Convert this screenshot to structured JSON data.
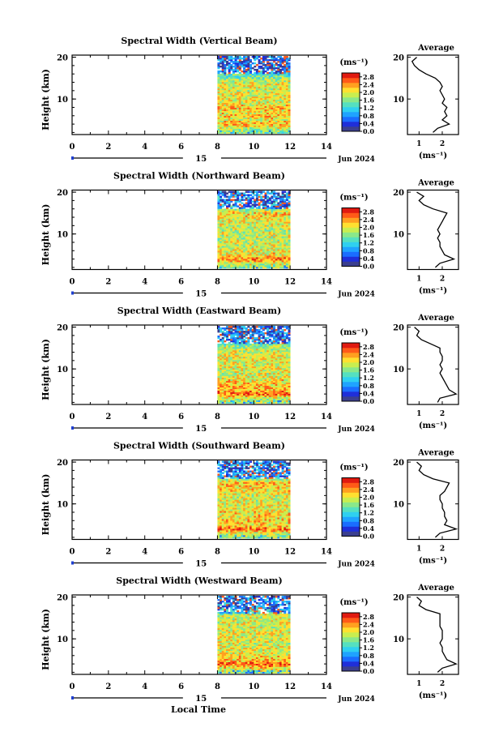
{
  "figure": {
    "xlabel": "Local Time",
    "date_label": "Jun 2024",
    "day_label": "15",
    "ylabel": "Height (km)",
    "unit_label": "(ms⁻¹)",
    "avg_title": "Average",
    "avg_xlabel": "(ms⁻¹)"
  },
  "colorbar": {
    "ticks": [
      "0.0",
      "0.4",
      "0.8",
      "1.2",
      "1.6",
      "2.0",
      "2.4",
      "2.8"
    ],
    "range": [
      0,
      3.0
    ],
    "colors": [
      "#3b3f8f",
      "#1f2fd9",
      "#1a6dff",
      "#1fa3ff",
      "#2fd0f0",
      "#55e0c0",
      "#8ae88a",
      "#c8ee50",
      "#ffe030",
      "#ffa020",
      "#ff5a18",
      "#e01a10"
    ]
  },
  "chart_data": [
    {
      "type": "heatmap",
      "title": "Spectral Width (Vertical Beam)",
      "x_ticks": [
        "0",
        "2",
        "4",
        "6",
        "8",
        "10",
        "12",
        "14"
      ],
      "xlim": [
        0,
        14
      ],
      "data_x_range": [
        8,
        12
      ],
      "y_ticks": [
        "20",
        "10"
      ],
      "ylim": [
        1.5,
        20.5
      ],
      "avg_x_ticks": [
        "1",
        "2"
      ],
      "avg_xlim": [
        0.5,
        2.7
      ],
      "avg_profile": [
        [
          1.6,
          2.0
        ],
        [
          1.8,
          3.0
        ],
        [
          2.3,
          4.0
        ],
        [
          2.0,
          5.0
        ],
        [
          2.2,
          6.0
        ],
        [
          2.1,
          7.0
        ],
        [
          2.2,
          8.0
        ],
        [
          2.0,
          9.0
        ],
        [
          2.1,
          10.0
        ],
        [
          2.0,
          11.0
        ],
        [
          1.9,
          12.0
        ],
        [
          2.0,
          13.0
        ],
        [
          1.9,
          14.0
        ],
        [
          1.7,
          15.0
        ],
        [
          1.3,
          16.0
        ],
        [
          1.0,
          17.0
        ],
        [
          0.8,
          18.0
        ],
        [
          0.7,
          19.0
        ],
        [
          0.9,
          20.0
        ]
      ]
    },
    {
      "type": "heatmap",
      "title": "Spectral Width (Northward Beam)",
      "x_ticks": [
        "0",
        "2",
        "4",
        "6",
        "8",
        "10",
        "12",
        "14"
      ],
      "xlim": [
        0,
        14
      ],
      "data_x_range": [
        8,
        12
      ],
      "y_ticks": [
        "20",
        "10"
      ],
      "ylim": [
        1.5,
        20.5
      ],
      "avg_x_ticks": [
        "1",
        "2"
      ],
      "avg_xlim": [
        0.5,
        2.7
      ],
      "avg_profile": [
        [
          1.7,
          2.0
        ],
        [
          1.9,
          3.0
        ],
        [
          2.5,
          4.0
        ],
        [
          2.1,
          5.0
        ],
        [
          2.0,
          6.0
        ],
        [
          1.9,
          7.0
        ],
        [
          1.9,
          8.0
        ],
        [
          1.8,
          9.0
        ],
        [
          1.9,
          10.0
        ],
        [
          1.8,
          11.0
        ],
        [
          1.9,
          12.0
        ],
        [
          2.0,
          13.0
        ],
        [
          2.1,
          14.0
        ],
        [
          2.2,
          15.0
        ],
        [
          1.6,
          16.0
        ],
        [
          1.2,
          17.0
        ],
        [
          1.0,
          18.0
        ],
        [
          1.2,
          19.0
        ],
        [
          0.9,
          20.0
        ]
      ]
    },
    {
      "type": "heatmap",
      "title": "Spectral Width (Eastward Beam)",
      "x_ticks": [
        "0",
        "2",
        "4",
        "6",
        "8",
        "10",
        "12",
        "14"
      ],
      "xlim": [
        0,
        14
      ],
      "data_x_range": [
        8,
        12
      ],
      "y_ticks": [
        "20",
        "10"
      ],
      "ylim": [
        1.5,
        20.5
      ],
      "avg_x_ticks": [
        "1",
        "2"
      ],
      "avg_xlim": [
        0.5,
        2.7
      ],
      "avg_profile": [
        [
          1.8,
          2.0
        ],
        [
          1.9,
          3.0
        ],
        [
          2.6,
          4.0
        ],
        [
          2.3,
          5.0
        ],
        [
          2.2,
          6.0
        ],
        [
          2.1,
          7.0
        ],
        [
          2.0,
          8.0
        ],
        [
          1.9,
          9.0
        ],
        [
          2.0,
          10.0
        ],
        [
          1.9,
          11.0
        ],
        [
          2.0,
          12.0
        ],
        [
          2.0,
          13.0
        ],
        [
          1.9,
          14.0
        ],
        [
          1.9,
          15.0
        ],
        [
          1.5,
          16.0
        ],
        [
          1.1,
          17.0
        ],
        [
          0.9,
          18.0
        ],
        [
          1.0,
          19.0
        ],
        [
          0.8,
          20.0
        ]
      ]
    },
    {
      "type": "heatmap",
      "title": "Spectral Width (Southward Beam)",
      "x_ticks": [
        "0",
        "2",
        "4",
        "6",
        "8",
        "10",
        "12",
        "14"
      ],
      "xlim": [
        0,
        14
      ],
      "data_x_range": [
        8,
        12
      ],
      "y_ticks": [
        "20",
        "10"
      ],
      "ylim": [
        1.5,
        20.5
      ],
      "avg_x_ticks": [
        "1",
        "2"
      ],
      "avg_xlim": [
        0.5,
        2.7
      ],
      "avg_profile": [
        [
          1.7,
          2.0
        ],
        [
          1.9,
          3.0
        ],
        [
          2.6,
          4.0
        ],
        [
          2.1,
          5.0
        ],
        [
          2.2,
          6.0
        ],
        [
          2.1,
          7.0
        ],
        [
          2.1,
          8.0
        ],
        [
          2.0,
          9.0
        ],
        [
          2.0,
          10.0
        ],
        [
          1.9,
          11.0
        ],
        [
          1.9,
          12.0
        ],
        [
          2.1,
          13.0
        ],
        [
          2.2,
          14.0
        ],
        [
          2.3,
          15.0
        ],
        [
          1.6,
          16.0
        ],
        [
          1.2,
          17.0
        ],
        [
          1.0,
          18.0
        ],
        [
          1.1,
          19.0
        ],
        [
          0.9,
          20.0
        ]
      ]
    },
    {
      "type": "heatmap",
      "title": "Spectral Width (Westward Beam)",
      "x_ticks": [
        "0",
        "2",
        "4",
        "6",
        "8",
        "10",
        "12",
        "14"
      ],
      "xlim": [
        0,
        14
      ],
      "data_x_range": [
        8,
        12
      ],
      "y_ticks": [
        "20",
        "10"
      ],
      "ylim": [
        1.5,
        20.5
      ],
      "avg_x_ticks": [
        "1",
        "2"
      ],
      "avg_xlim": [
        0.5,
        2.7
      ],
      "avg_profile": [
        [
          1.8,
          2.0
        ],
        [
          2.0,
          3.0
        ],
        [
          2.6,
          4.0
        ],
        [
          2.2,
          5.0
        ],
        [
          2.1,
          6.0
        ],
        [
          2.0,
          7.0
        ],
        [
          2.0,
          8.0
        ],
        [
          1.9,
          9.0
        ],
        [
          2.0,
          10.0
        ],
        [
          2.0,
          11.0
        ],
        [
          2.0,
          12.0
        ],
        [
          1.9,
          13.0
        ],
        [
          1.9,
          14.0
        ],
        [
          1.9,
          15.0
        ],
        [
          1.9,
          16.0
        ],
        [
          1.3,
          17.0
        ],
        [
          1.0,
          18.0
        ],
        [
          1.1,
          19.0
        ],
        [
          0.9,
          20.0
        ]
      ]
    }
  ]
}
